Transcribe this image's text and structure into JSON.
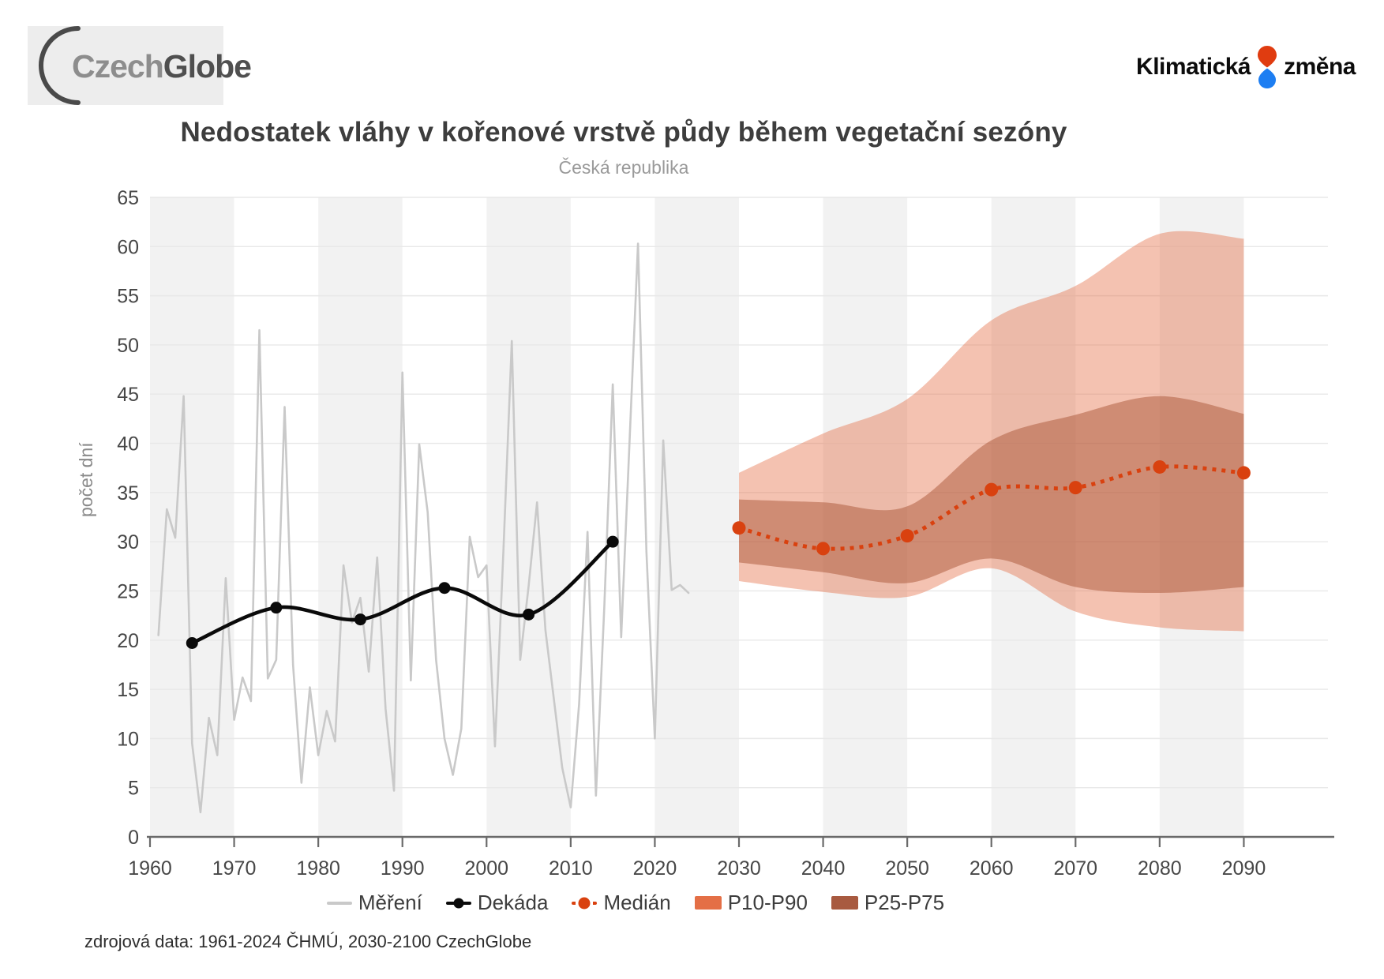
{
  "header": {
    "czechglobe": {
      "part1": "Czech",
      "part2": "Globe"
    },
    "klimaticka": {
      "word1": "Klimatická",
      "word2": "změna",
      "drop_top_color": "#e03c10",
      "drop_bottom_color": "#1d7ef2"
    }
  },
  "chart_data": {
    "type": "line",
    "title": "Nedostatek vláhy v kořenové vrstvě půdy během vegetační sezóny",
    "subtitle": "Česká republika",
    "ylabel": "počet dní",
    "ylim": [
      0,
      65
    ],
    "xlim": [
      1960,
      2100
    ],
    "y_ticks": [
      0,
      5,
      10,
      15,
      20,
      25,
      30,
      35,
      40,
      45,
      50,
      55,
      60,
      65
    ],
    "x_ticks": [
      1960,
      1970,
      1980,
      1990,
      2000,
      2010,
      2020,
      2030,
      2040,
      2050,
      2060,
      2070,
      2080,
      2090
    ],
    "grid": true,
    "stripe_decades": [
      1960,
      1980,
      2000,
      2020,
      2040,
      2060,
      2080
    ],
    "colors": {
      "stripe": "#f2f2f2",
      "gridline": "#e8e8e8",
      "axis": "#6a6a6a",
      "tick_label": "#474747",
      "mereni": "#c9c9c9",
      "dekada": "#0a0a0a",
      "median": "#d9410f",
      "p10p90_fill": "rgba(228,110,68,0.42)",
      "p25p75_fill": "rgba(170,85,55,0.50)",
      "p10p90_swatch": "#e46f46",
      "p25p75_swatch": "#a85a40"
    },
    "series": [
      {
        "name": "Měření",
        "kind": "polyline",
        "x": [
          1961,
          1962,
          1963,
          1964,
          1965,
          1966,
          1967,
          1968,
          1969,
          1970,
          1971,
          1972,
          1973,
          1974,
          1975,
          1976,
          1977,
          1978,
          1979,
          1980,
          1981,
          1982,
          1983,
          1984,
          1985,
          1986,
          1987,
          1988,
          1989,
          1990,
          1991,
          1992,
          1993,
          1994,
          1995,
          1996,
          1997,
          1998,
          1999,
          2000,
          2001,
          2002,
          2003,
          2004,
          2005,
          2006,
          2007,
          2008,
          2009,
          2010,
          2011,
          2012,
          2013,
          2014,
          2015,
          2016,
          2017,
          2018,
          2019,
          2020,
          2021,
          2022,
          2023,
          2024
        ],
        "values": [
          20.5,
          33.3,
          30.4,
          44.8,
          9.5,
          2.5,
          12.1,
          8.3,
          26.3,
          11.9,
          16.2,
          13.8,
          51.5,
          16.1,
          18.0,
          43.7,
          17.5,
          5.5,
          15.2,
          8.3,
          12.8,
          9.7,
          27.6,
          21.8,
          24.3,
          16.8,
          28.4,
          13.0,
          4.7,
          47.2,
          15.9,
          39.9,
          33.0,
          18.0,
          10.0,
          6.3,
          11.0,
          30.5,
          26.4,
          27.6,
          9.2,
          29.0,
          50.4,
          18.0,
          25.5,
          34.0,
          21.0,
          14.0,
          7.0,
          3.0,
          13.5,
          31.0,
          4.2,
          23.5,
          46.0,
          20.3,
          40.3,
          60.3,
          29.0,
          10.0,
          40.3,
          25.1,
          25.6,
          24.8
        ]
      },
      {
        "name": "Dekáda",
        "kind": "smooth-markers",
        "x": [
          1965,
          1975,
          1985,
          1995,
          2005,
          2015
        ],
        "values": [
          19.7,
          23.3,
          22.1,
          25.3,
          22.6,
          30.0
        ]
      },
      {
        "name": "Medián",
        "kind": "dotted-markers",
        "x": [
          2030,
          2040,
          2050,
          2060,
          2070,
          2080,
          2090
        ],
        "values": [
          31.4,
          29.3,
          30.6,
          35.3,
          35.5,
          37.6,
          37.0
        ]
      },
      {
        "name": "P10-P90",
        "kind": "band",
        "x": [
          2030,
          2040,
          2050,
          2060,
          2070,
          2080,
          2090
        ],
        "upper": [
          37.0,
          41.0,
          44.5,
          52.5,
          56.0,
          61.3,
          60.8
        ],
        "lower": [
          26.0,
          24.9,
          24.4,
          27.3,
          22.9,
          21.3,
          20.9
        ]
      },
      {
        "name": "P25-P75",
        "kind": "band",
        "x": [
          2030,
          2040,
          2050,
          2060,
          2070,
          2080,
          2090
        ],
        "upper": [
          34.3,
          34.0,
          33.6,
          40.3,
          42.9,
          44.8,
          43.0
        ],
        "lower": [
          27.9,
          26.9,
          25.8,
          28.3,
          25.4,
          24.8,
          25.4
        ]
      }
    ]
  },
  "legend": {
    "items": [
      {
        "label": "Měření"
      },
      {
        "label": "Dekáda"
      },
      {
        "label": "Medián"
      },
      {
        "label": "P10-P90"
      },
      {
        "label": "P25-P75"
      }
    ]
  },
  "footer": {
    "source": "zdrojová data: 1961-2024 ČHMÚ, 2030-2100 CzechGlobe"
  }
}
